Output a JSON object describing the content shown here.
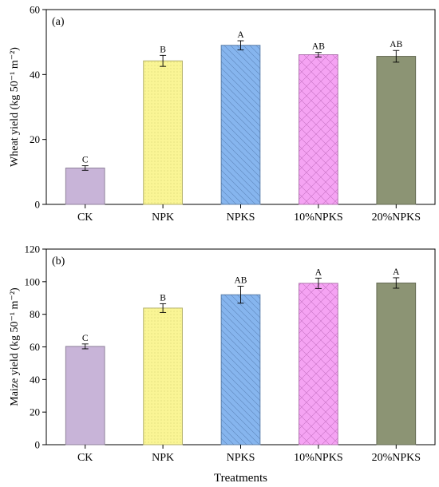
{
  "chart_data": [
    {
      "type": "bar",
      "panel_label": "(a)",
      "categories": [
        "CK",
        "NPK",
        "NPKS",
        "10%NPKS",
        "20%NPKS"
      ],
      "values": [
        11.2,
        44.2,
        49.0,
        46.1,
        45.6
      ],
      "errors": [
        0.7,
        1.7,
        1.4,
        0.7,
        1.8
      ],
      "significance": [
        "C",
        "B",
        "A",
        "AB",
        "AB"
      ],
      "ylabel": "Wheat yield (kg 50⁻¹ m⁻²)",
      "xlabel": "",
      "ylim": [
        0,
        60
      ],
      "yticks": [
        0,
        20,
        40,
        60
      ],
      "grid": false
    },
    {
      "type": "bar",
      "panel_label": "(b)",
      "categories": [
        "CK",
        "NPK",
        "NPKS",
        "10%NPKS",
        "20%NPKS"
      ],
      "values": [
        60.3,
        83.8,
        92.0,
        99.0,
        99.2
      ],
      "errors": [
        1.5,
        2.7,
        5.2,
        3.2,
        3.2
      ],
      "significance": [
        "C",
        "B",
        "AB",
        "A",
        "A"
      ],
      "ylabel": "Maize yield (kg 50⁻¹ m⁻²)",
      "xlabel": "Treatments",
      "ylim": [
        0,
        120
      ],
      "yticks": [
        0,
        20,
        40,
        60,
        80,
        100,
        120
      ],
      "grid": false
    }
  ],
  "bar_colors": [
    "#C8B4D8",
    "#FAF595",
    "#86B5EE",
    "#F5A3F3",
    "#8C9474"
  ],
  "bar_patterns": [
    "none",
    "dots",
    "diag-down",
    "crosshatch",
    "none"
  ]
}
